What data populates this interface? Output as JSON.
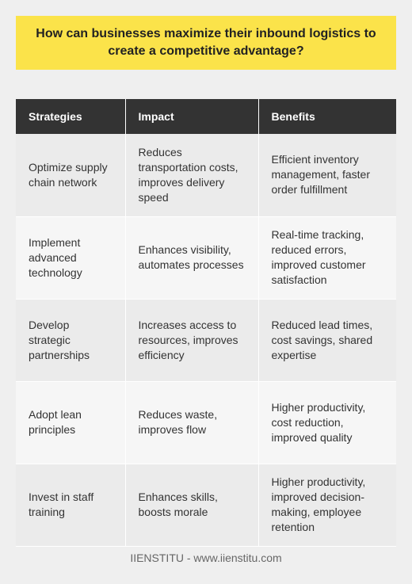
{
  "title": "How can businesses maximize their inbound logistics to create a competitive advantage?",
  "table": {
    "headers": [
      "Strategies",
      "Impact",
      "Benefits"
    ],
    "rows": [
      [
        "Optimize supply chain network",
        "Reduces transportation costs, improves delivery speed",
        "Efficient inventory management, faster order fulfillment"
      ],
      [
        "Implement advanced technology",
        "Enhances visibility, automates processes",
        "Real-time tracking, reduced errors, improved customer satisfaction"
      ],
      [
        "Develop strategic partnerships",
        "Increases access to resources, improves efficiency",
        "Reduced lead times, cost savings, shared expertise"
      ],
      [
        "Adopt lean principles",
        "Reduces waste, improves flow",
        "Higher productivity, cost reduction, improved quality"
      ],
      [
        "Invest in staff training",
        "Enhances skills, boosts morale",
        "Higher productivity, improved decision-making, employee retention"
      ]
    ]
  },
  "footer": "IIENSTITU - www.iienstitu.com",
  "colors": {
    "banner": "#fbe34a",
    "header_bg": "#333333",
    "background": "#efefef"
  }
}
